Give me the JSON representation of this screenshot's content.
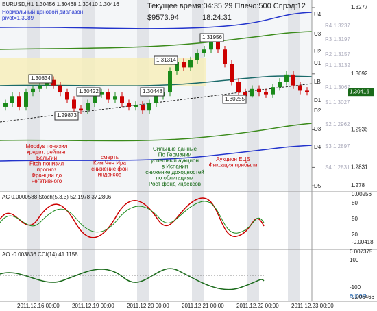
{
  "chart_data": {
    "type": "candlestick",
    "header": "EURUSD,H1 1.30456 1.30468 1.30410 1.30416",
    "indicator_name": "Нормальный ценовой диапазон",
    "pivot": "pivot=1.3089",
    "status": "Текущее время:04:35:29 Плечо:500 Спрэд:12",
    "balance": "$9573.94",
    "clock": "18:24:31",
    "opens": [
      1.3,
      1.301,
      1.303,
      1.3,
      1.304,
      1.305,
      1.306,
      1.3075,
      1.306,
      1.304,
      1.302,
      1.2995,
      1.299,
      1.301,
      1.3035,
      1.304,
      1.302,
      1.303,
      1.301,
      1.3,
      1.3005,
      1.299,
      1.301,
      1.303,
      1.304,
      1.31,
      1.3125,
      1.311,
      1.313,
      1.315,
      1.316,
      1.3185,
      1.316,
      1.312,
      1.307,
      1.304,
      1.303,
      1.305,
      1.304,
      1.3035,
      1.3055,
      1.307,
      1.309,
      1.306,
      1.3045
    ],
    "highs": [
      1.302,
      1.304,
      1.304,
      1.305,
      1.306,
      1.307,
      1.3085,
      1.3085,
      1.307,
      1.305,
      1.303,
      1.3005,
      1.302,
      1.3045,
      1.305,
      1.305,
      1.304,
      1.304,
      1.302,
      1.3015,
      1.3015,
      1.302,
      1.304,
      1.305,
      1.311,
      1.3135,
      1.3135,
      1.314,
      1.316,
      1.317,
      1.3196,
      1.3195,
      1.317,
      1.313,
      1.308,
      1.305,
      1.306,
      1.306,
      1.305,
      1.3065,
      1.308,
      1.31,
      1.31,
      1.307,
      1.3055
    ],
    "lows": [
      1.299,
      1.3,
      1.299,
      1.299,
      1.303,
      1.304,
      1.305,
      1.305,
      1.303,
      1.301,
      1.2985,
      1.298,
      1.298,
      1.3,
      1.3025,
      1.301,
      1.301,
      1.3,
      1.299,
      1.299,
      1.298,
      1.298,
      1.3,
      1.302,
      1.303,
      1.309,
      1.31,
      1.31,
      1.312,
      1.314,
      1.315,
      1.315,
      1.311,
      1.306,
      1.303,
      1.3026,
      1.3026,
      1.303,
      1.3025,
      1.3025,
      1.3045,
      1.306,
      1.305,
      1.3035,
      1.3032
    ],
    "closes": [
      1.301,
      1.303,
      1.3,
      1.304,
      1.305,
      1.306,
      1.3075,
      1.306,
      1.304,
      1.302,
      1.2995,
      1.299,
      1.301,
      1.3035,
      1.304,
      1.302,
      1.303,
      1.301,
      1.3,
      1.3005,
      1.299,
      1.301,
      1.303,
      1.304,
      1.31,
      1.3125,
      1.311,
      1.313,
      1.315,
      1.316,
      1.3185,
      1.316,
      1.312,
      1.307,
      1.304,
      1.303,
      1.305,
      1.304,
      1.3035,
      1.3055,
      1.307,
      1.309,
      1.306,
      1.3045,
      1.3042
    ],
    "up_color": "#1a8a1a",
    "down_color": "#cc0000",
    "ylim": [
      1.2763,
      1.3298
    ],
    "yticks": [
      1.3277,
      1.3092,
      1.2936,
      1.2831,
      1.278
    ],
    "last_price": 1.30416,
    "price_labels": [
      "1.30834",
      "1.29873",
      "1.30422",
      "1.30448",
      "1.31314",
      "1.31956",
      "1.30255"
    ],
    "levels": [
      "U4",
      "U3",
      "U2",
      "U1",
      "LB",
      "D1",
      "D2",
      "D3",
      "D4",
      "D5"
    ],
    "pivot_labels": [
      "R4 1.3237",
      "R3 1.3197",
      "R2 1.3157",
      "R1 1.3132",
      "R1 1.3067",
      "S1 1.3027",
      "S2 1.2962",
      "S3 1.2897",
      "S4 1.2831"
    ],
    "annotations": [
      {
        "color": "#cc0000",
        "lines": [
          "Moodys понизил",
          "кредит. рейтинг",
          "Бельгии",
          "Fitch понизил",
          "прогноз",
          "Франции до",
          "негативного"
        ]
      },
      {
        "color": "#cc0000",
        "lines": [
          "смерть",
          "Ким Чен Ира",
          "снижение фон",
          "индексов"
        ]
      },
      {
        "color": "#116611",
        "lines": [
          "Сильные данные",
          "По Германии",
          "успешный аукцион",
          "в Испании",
          "снижение доходностей",
          "по облигациям",
          "Рост фонд индексов"
        ]
      },
      {
        "color": "#cc0000",
        "lines": [
          "Аукцион ЕЦБ",
          "Фиксация прибыли"
        ]
      }
    ],
    "panel1": "AC 0.0000588 Stoch(5,3,3) 52.1978 37.2806",
    "panel1_ticks": [
      "0.00256",
      "80",
      "50",
      "20",
      "-0.00418"
    ],
    "panel2": "AO -0.003836 CCI(14) 41.1158",
    "panel2_ticks": [
      "0.007375",
      "100",
      "-100",
      "-0.006466"
    ],
    "times": [
      "2011.12.16 00:00",
      "2011.12.19 00:00",
      "2011.12.20 00:00",
      "2011.12.21 00:00",
      "2011.12.22 00:00",
      "2011.12.23 00:00"
    ],
    "brand": "alpari"
  }
}
